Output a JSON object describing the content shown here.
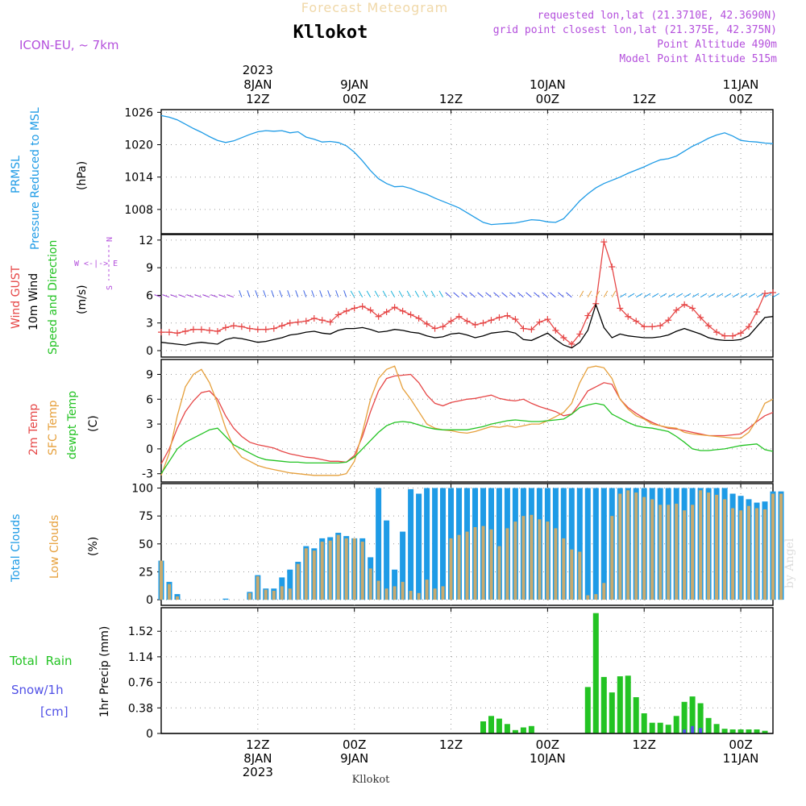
{
  "header": {
    "subtitle": "Forecast Meteogram",
    "station": "Kllokot",
    "model": "ICON-EU, ~ 7km",
    "requested": "requested lon,lat (21.3710E, 42.3690N)",
    "grid_point": "grid point closest lon,lat (21.375E, 42.375N)",
    "point_alt": "Point Altitude 490m",
    "model_alt": "Model Point Altitude 515m",
    "footer_station": "Kllokot",
    "credit": "by Angel"
  },
  "colors": {
    "blue": "#1e9be6",
    "red": "#e64646",
    "green": "#23c323",
    "orange": "#e6a03c",
    "purple": "#b450dc",
    "black": "#000000"
  },
  "time_axis": {
    "top_labels": [
      {
        "t": 12,
        "lines": [
          "2023",
          "8JAN",
          "12Z"
        ]
      },
      {
        "t": 24,
        "lines": [
          "9JAN",
          "00Z"
        ]
      },
      {
        "t": 36,
        "lines": [
          "12Z"
        ]
      },
      {
        "t": 48,
        "lines": [
          "10JAN",
          "00Z"
        ]
      },
      {
        "t": 60,
        "lines": [
          "12Z"
        ]
      },
      {
        "t": 72,
        "lines": [
          "11JAN",
          "00Z"
        ]
      }
    ],
    "bottom_labels": [
      {
        "t": 12,
        "lines": [
          "12Z",
          "8JAN",
          "2023"
        ]
      },
      {
        "t": 24,
        "lines": [
          "00Z",
          "9JAN"
        ]
      },
      {
        "t": 36,
        "lines": [
          "12Z"
        ]
      },
      {
        "t": 48,
        "lines": [
          "00Z",
          "10JAN"
        ]
      },
      {
        "t": 60,
        "lines": [
          "12Z"
        ]
      },
      {
        "t": 72,
        "lines": [
          "00Z",
          "11JAN"
        ]
      }
    ]
  },
  "panel_labels": {
    "pressure": [
      "PRMSL",
      "Pressure Reduced to MSL",
      "(hPa)"
    ],
    "wind": [
      "Wind GUST",
      "10m Wind",
      "Speed and Direction",
      "(m/s)"
    ],
    "compass": [
      "N",
      "W <-|-> E",
      "S"
    ],
    "temp": [
      "2m Temp",
      "SFC Temp",
      "dewpt Temp",
      "(C)"
    ],
    "clouds": [
      "Total Clouds",
      "Low Clouds",
      "(%)"
    ],
    "precip": [
      "Total  Rain",
      "Snow/1h",
      "[cm]",
      "1hr Precip (mm)"
    ]
  },
  "chart_data": [
    {
      "type": "line",
      "name": "pressure",
      "title": "PRMSL Pressure Reduced to MSL",
      "ylabel": "hPa",
      "x_start_hour": 0,
      "x_end_hour": 76,
      "ylim": [
        1003.5,
        1026.5
      ],
      "yticks": [
        1008,
        1014,
        1020,
        1026
      ],
      "series": [
        {
          "name": "PRMSL",
          "color": "#1e9be6",
          "values": [
            1025.4,
            1025.1,
            1024.6,
            1023.8,
            1023.0,
            1022.3,
            1021.5,
            1020.8,
            1020.4,
            1020.7,
            1021.3,
            1021.9,
            1022.4,
            1022.6,
            1022.5,
            1022.6,
            1022.2,
            1022.4,
            1021.4,
            1021.0,
            1020.5,
            1020.6,
            1020.4,
            1019.8,
            1018.6,
            1017.0,
            1015.2,
            1013.7,
            1012.8,
            1012.2,
            1012.3,
            1011.9,
            1011.3,
            1010.8,
            1010.1,
            1009.5,
            1008.9,
            1008.3,
            1007.4,
            1006.5,
            1005.6,
            1005.2,
            1005.3,
            1005.4,
            1005.5,
            1005.8,
            1006.1,
            1006.0,
            1005.7,
            1005.6,
            1006.3,
            1007.9,
            1009.6,
            1010.9,
            1012.0,
            1012.8,
            1013.4,
            1014.0,
            1014.7,
            1015.3,
            1015.9,
            1016.6,
            1017.2,
            1017.4,
            1017.9,
            1018.8,
            1019.7,
            1020.4,
            1021.2,
            1021.8,
            1022.2,
            1021.6,
            1020.8,
            1020.6,
            1020.5,
            1020.3,
            1020.2
          ]
        }
      ]
    },
    {
      "type": "line",
      "name": "wind",
      "title": "Wind GUST / 10m Wind Speed and Direction",
      "ylabel": "m/s",
      "ylim": [
        -0.7,
        12.6
      ],
      "yticks": [
        0,
        3,
        6,
        9,
        12
      ],
      "series": [
        {
          "name": "Wind GUST",
          "color": "#e64646",
          "marker": "+",
          "values": [
            2.0,
            2.0,
            1.9,
            2.1,
            2.3,
            2.3,
            2.2,
            2.1,
            2.5,
            2.7,
            2.6,
            2.4,
            2.3,
            2.3,
            2.4,
            2.7,
            3.0,
            3.1,
            3.2,
            3.5,
            3.3,
            3.1,
            3.9,
            4.3,
            4.6,
            4.8,
            4.4,
            3.7,
            4.2,
            4.7,
            4.3,
            3.9,
            3.5,
            2.9,
            2.4,
            2.6,
            3.2,
            3.7,
            3.2,
            2.8,
            3.0,
            3.3,
            3.6,
            3.8,
            3.4,
            2.4,
            2.3,
            3.1,
            3.4,
            2.2,
            1.4,
            0.7,
            1.8,
            3.8,
            5.1,
            11.8,
            9.1,
            4.6,
            3.7,
            3.2,
            2.6,
            2.6,
            2.7,
            3.3,
            4.4,
            5.0,
            4.6,
            3.6,
            2.7,
            2.0,
            1.6,
            1.6,
            1.9,
            2.6,
            4.2,
            6.2,
            6.3
          ]
        },
        {
          "name": "10m Wind",
          "color": "#000000",
          "values": [
            0.9,
            0.8,
            0.7,
            0.6,
            0.8,
            0.9,
            0.8,
            0.7,
            1.2,
            1.4,
            1.3,
            1.1,
            0.9,
            1.0,
            1.2,
            1.4,
            1.7,
            1.8,
            2.0,
            2.1,
            1.9,
            1.8,
            2.2,
            2.4,
            2.4,
            2.5,
            2.3,
            2.0,
            2.1,
            2.3,
            2.2,
            2.0,
            1.9,
            1.6,
            1.4,
            1.5,
            1.8,
            1.9,
            1.7,
            1.4,
            1.6,
            1.9,
            2.0,
            2.1,
            1.9,
            1.2,
            1.1,
            1.5,
            1.9,
            1.2,
            0.6,
            0.3,
            0.9,
            2.2,
            5.0,
            2.5,
            1.4,
            1.8,
            1.6,
            1.5,
            1.4,
            1.4,
            1.5,
            1.7,
            2.1,
            2.4,
            2.1,
            1.8,
            1.4,
            1.2,
            1.1,
            1.1,
            1.2,
            1.6,
            2.6,
            3.6,
            3.7
          ]
        }
      ],
      "direction_arrows_row_value": 5.8
    },
    {
      "type": "line",
      "name": "temperature",
      "title": "2m Temp / SFC Temp / dewpt Temp",
      "ylabel": "C",
      "ylim": [
        -4,
        10.8
      ],
      "yticks": [
        -3,
        0,
        3,
        6,
        9
      ],
      "series": [
        {
          "name": "2m Temp",
          "color": "#e64646",
          "values": [
            -1.8,
            0.0,
            2.5,
            4.5,
            5.8,
            6.8,
            7.0,
            6.0,
            4.0,
            2.5,
            1.5,
            0.8,
            0.5,
            0.3,
            0.1,
            -0.3,
            -0.6,
            -0.8,
            -1.0,
            -1.1,
            -1.3,
            -1.5,
            -1.5,
            -1.6,
            -0.8,
            1.5,
            4.5,
            7.0,
            8.5,
            8.8,
            8.9,
            9.0,
            8.0,
            6.5,
            5.5,
            5.2,
            5.6,
            5.8,
            6.0,
            6.1,
            6.3,
            6.5,
            6.1,
            5.9,
            5.8,
            6.0,
            5.5,
            5.1,
            4.8,
            4.5,
            4.0,
            4.2,
            5.5,
            7.0,
            7.5,
            8.0,
            7.8,
            6.0,
            5.0,
            4.3,
            3.7,
            3.2,
            2.8,
            2.5,
            2.4,
            2.2,
            2.0,
            1.8,
            1.6,
            1.6,
            1.6,
            1.7,
            1.8,
            2.5,
            3.3,
            4.0,
            4.4
          ]
        },
        {
          "name": "SFC Temp",
          "color": "#e6a03c",
          "values": [
            -3.2,
            -0.5,
            4.0,
            7.5,
            9.0,
            9.6,
            8.0,
            5.5,
            2.5,
            0.2,
            -1.0,
            -1.5,
            -2.0,
            -2.3,
            -2.5,
            -2.7,
            -2.9,
            -3.0,
            -3.1,
            -3.2,
            -3.2,
            -3.2,
            -3.2,
            -3.0,
            -1.5,
            2.0,
            6.0,
            8.5,
            9.6,
            10.0,
            7.3,
            6.0,
            4.5,
            3.0,
            2.5,
            2.3,
            2.2,
            2.0,
            1.9,
            2.1,
            2.4,
            2.7,
            2.6,
            2.8,
            2.6,
            2.8,
            3.0,
            3.0,
            3.4,
            3.9,
            4.4,
            5.5,
            8.0,
            9.8,
            10.0,
            9.8,
            8.5,
            6.0,
            4.8,
            4.0,
            3.6,
            3.0,
            2.8,
            2.6,
            2.5,
            2.0,
            1.8,
            1.7,
            1.6,
            1.5,
            1.4,
            1.3,
            1.3,
            2.0,
            3.5,
            5.5,
            6.0
          ]
        },
        {
          "name": "dewpt Temp",
          "color": "#23c323",
          "values": [
            -3.0,
            -1.5,
            0.0,
            0.8,
            1.3,
            1.8,
            2.3,
            2.5,
            1.5,
            0.5,
            0.0,
            -0.5,
            -1.0,
            -1.3,
            -1.4,
            -1.5,
            -1.6,
            -1.6,
            -1.7,
            -1.7,
            -1.7,
            -1.7,
            -1.7,
            -1.6,
            -1.0,
            0.0,
            1.0,
            2.0,
            2.8,
            3.2,
            3.3,
            3.2,
            2.9,
            2.6,
            2.4,
            2.3,
            2.3,
            2.3,
            2.3,
            2.5,
            2.7,
            3.0,
            3.2,
            3.4,
            3.5,
            3.4,
            3.3,
            3.3,
            3.4,
            3.5,
            3.6,
            4.2,
            5.0,
            5.3,
            5.5,
            5.3,
            4.2,
            3.7,
            3.2,
            2.8,
            2.6,
            2.5,
            2.3,
            2.1,
            1.5,
            0.8,
            0.0,
            -0.2,
            -0.2,
            -0.1,
            0.0,
            0.2,
            0.4,
            0.5,
            0.6,
            -0.1,
            -0.3
          ]
        }
      ]
    },
    {
      "type": "bar",
      "name": "clouds",
      "title": "Total Clouds / Low Clouds",
      "ylabel": "%",
      "ylim": [
        -5,
        104
      ],
      "yticks": [
        0,
        25,
        50,
        75,
        100
      ],
      "series": [
        {
          "name": "Total Clouds",
          "color": "#1e9be6",
          "values": [
            35,
            16,
            5,
            0,
            0,
            0,
            0,
            0,
            1,
            0,
            0,
            7,
            22,
            10,
            10,
            20,
            27,
            34,
            48,
            46,
            55,
            56,
            60,
            57,
            55,
            55,
            38,
            100,
            71,
            27,
            61,
            99,
            95,
            100,
            100,
            100,
            100,
            100,
            100,
            100,
            100,
            100,
            100,
            100,
            100,
            100,
            100,
            100,
            100,
            100,
            100,
            100,
            100,
            100,
            100,
            100,
            100,
            100,
            100,
            100,
            100,
            100,
            100,
            100,
            100,
            100,
            100,
            100,
            100,
            100,
            100,
            95,
            93,
            90,
            87,
            88,
            97,
            97
          ]
        },
        {
          "name": "Low Clouds",
          "color": "#c8aa6e",
          "values": [
            35,
            14,
            3,
            0,
            0,
            0,
            0,
            0,
            0,
            0,
            0,
            6,
            21,
            9,
            8,
            12,
            10,
            32,
            46,
            44,
            52,
            53,
            58,
            55,
            55,
            52,
            28,
            17,
            10,
            12,
            16,
            8,
            6,
            18,
            10,
            12,
            55,
            58,
            61,
            65,
            66,
            63,
            48,
            64,
            70,
            75,
            76,
            72,
            70,
            64,
            55,
            45,
            43,
            4,
            5,
            15,
            75,
            95,
            98,
            96,
            92,
            90,
            85,
            85,
            86,
            80,
            85,
            98,
            96,
            94,
            90,
            82,
            80,
            84,
            82,
            81,
            95,
            95
          ]
        }
      ]
    },
    {
      "type": "bar",
      "name": "precip",
      "title": "1hr Precip (mm)",
      "ylabel": "mm",
      "ylim": [
        0,
        1.87
      ],
      "yticks": [
        0,
        0.38,
        0.76,
        1.14,
        1.52
      ],
      "series": [
        {
          "name": "Total Rain",
          "color": "#23c323",
          "values": [
            0,
            0,
            0,
            0,
            0,
            0,
            0,
            0,
            0,
            0,
            0,
            0,
            0,
            0,
            0,
            0,
            0,
            0,
            0,
            0,
            0,
            0,
            0,
            0,
            0,
            0,
            0,
            0,
            0,
            0,
            0,
            0,
            0,
            0,
            0,
            0,
            0,
            0,
            0,
            0,
            0.18,
            0.26,
            0.22,
            0.14,
            0.05,
            0.09,
            0.11,
            0,
            0,
            0,
            0,
            0,
            0,
            0.69,
            1.79,
            0.84,
            0.61,
            0.85,
            0.86,
            0.54,
            0.3,
            0.16,
            0.16,
            0.13,
            0.26,
            0.47,
            0.55,
            0.45,
            0.23,
            0.14,
            0.07,
            0.06,
            0.06,
            0.06,
            0.06,
            0.04,
            0
          ]
        },
        {
          "name": "Snow/1h",
          "color": "#5050e6",
          "values": [
            0,
            0,
            0,
            0,
            0,
            0,
            0,
            0,
            0,
            0,
            0,
            0,
            0,
            0,
            0,
            0,
            0,
            0,
            0,
            0,
            0,
            0,
            0,
            0,
            0,
            0,
            0,
            0,
            0,
            0,
            0,
            0,
            0,
            0,
            0,
            0,
            0,
            0,
            0,
            0,
            0,
            0,
            0,
            0,
            0,
            0,
            0,
            0,
            0,
            0,
            0,
            0,
            0,
            0,
            0,
            0,
            0,
            0,
            0,
            0,
            0,
            0,
            0,
            0,
            0,
            0.06,
            0.11,
            0.08,
            0,
            0,
            0,
            0,
            0,
            0,
            0,
            0,
            0
          ]
        }
      ]
    }
  ]
}
